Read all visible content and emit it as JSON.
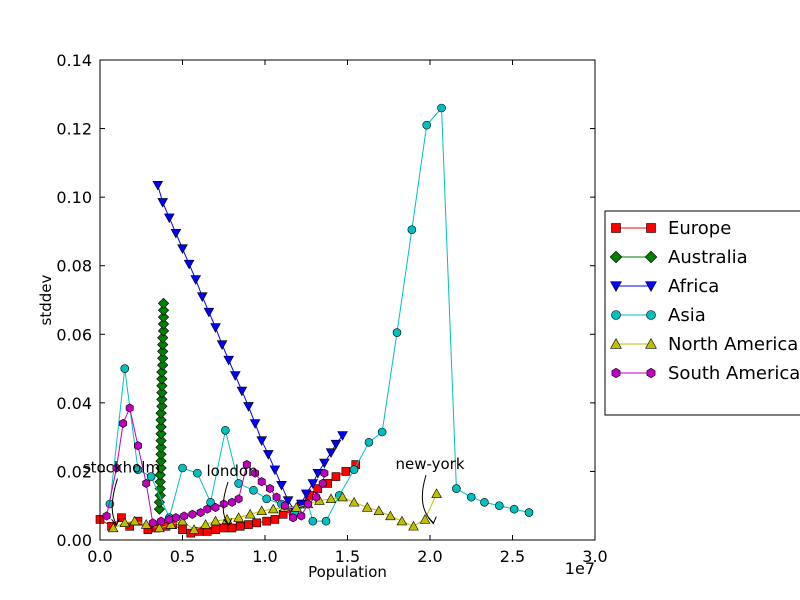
{
  "chart_data": {
    "type": "line",
    "xlabel": "Population",
    "ylabel": "stddev",
    "x_offset_label": "1e7",
    "xlim": [
      0,
      30000000
    ],
    "ylim": [
      0,
      0.14
    ],
    "x_scale": 10000000,
    "xticks": [
      0,
      5000000,
      10000000,
      15000000,
      20000000,
      25000000,
      30000000
    ],
    "xtick_labels": [
      "0.0",
      "0.5",
      "1.0",
      "1.5",
      "2.0",
      "2.5",
      "3.0"
    ],
    "yticks": [
      0,
      0.02,
      0.04,
      0.06,
      0.08,
      0.1,
      0.12,
      0.14
    ],
    "ytick_labels": [
      "0.00",
      "0.02",
      "0.04",
      "0.06",
      "0.08",
      "0.10",
      "0.12",
      "0.14"
    ],
    "grid": false,
    "legend_position": "right",
    "series": [
      {
        "name": "Europe",
        "color": "#ff0000",
        "marker": "square",
        "points": [
          [
            0,
            0.006
          ],
          [
            700000,
            0.004
          ],
          [
            1300000,
            0.0065
          ],
          [
            1800000,
            0.004
          ],
          [
            2300000,
            0.0055
          ],
          [
            2900000,
            0.003
          ],
          [
            3400000,
            0.0035
          ],
          [
            4000000,
            0.004
          ],
          [
            4400000,
            0.0045
          ],
          [
            5000000,
            0.003
          ],
          [
            5500000,
            0.002
          ],
          [
            6000000,
            0.0025
          ],
          [
            6500000,
            0.0025
          ],
          [
            7000000,
            0.003
          ],
          [
            7500000,
            0.0035
          ],
          [
            8000000,
            0.0035
          ],
          [
            8500000,
            0.004
          ],
          [
            9000000,
            0.0045
          ],
          [
            9500000,
            0.005
          ],
          [
            10100000,
            0.0055
          ],
          [
            10600000,
            0.006
          ],
          [
            11100000,
            0.0075
          ],
          [
            11700000,
            0.0085
          ],
          [
            12200000,
            0.0105
          ],
          [
            12700000,
            0.013
          ],
          [
            13200000,
            0.015
          ],
          [
            13800000,
            0.0165
          ],
          [
            14300000,
            0.0185
          ],
          [
            14900000,
            0.02
          ],
          [
            15500000,
            0.022
          ]
        ]
      },
      {
        "name": "Australia",
        "color": "#008000",
        "marker": "diamond",
        "points": [
          [
            3600000,
            0.009
          ],
          [
            3600000,
            0.011
          ],
          [
            3650000,
            0.013
          ],
          [
            3650000,
            0.015
          ],
          [
            3650000,
            0.017
          ],
          [
            3650000,
            0.019
          ],
          [
            3700000,
            0.021
          ],
          [
            3700000,
            0.023
          ],
          [
            3700000,
            0.025
          ],
          [
            3700000,
            0.027
          ],
          [
            3700000,
            0.029
          ],
          [
            3700000,
            0.031
          ],
          [
            3700000,
            0.033
          ],
          [
            3700000,
            0.035
          ],
          [
            3700000,
            0.037
          ],
          [
            3750000,
            0.039
          ],
          [
            3750000,
            0.041
          ],
          [
            3750000,
            0.043
          ],
          [
            3750000,
            0.045
          ],
          [
            3750000,
            0.047
          ],
          [
            3750000,
            0.049
          ],
          [
            3800000,
            0.051
          ],
          [
            3800000,
            0.053
          ],
          [
            3800000,
            0.055
          ],
          [
            3800000,
            0.057
          ],
          [
            3800000,
            0.059
          ],
          [
            3850000,
            0.061
          ],
          [
            3850000,
            0.063
          ],
          [
            3850000,
            0.065
          ],
          [
            3850000,
            0.067
          ],
          [
            3850000,
            0.069
          ]
        ]
      },
      {
        "name": "Africa",
        "color": "#0000ff",
        "marker": "triangle-down",
        "points": [
          [
            3500000,
            0.1035
          ],
          [
            3800000,
            0.0985
          ],
          [
            4200000,
            0.094
          ],
          [
            4600000,
            0.0895
          ],
          [
            5000000,
            0.085
          ],
          [
            5400000,
            0.0805
          ],
          [
            5800000,
            0.076
          ],
          [
            6200000,
            0.071
          ],
          [
            6600000,
            0.0665
          ],
          [
            7000000,
            0.062
          ],
          [
            7400000,
            0.057
          ],
          [
            7800000,
            0.0525
          ],
          [
            8200000,
            0.048
          ],
          [
            8600000,
            0.0435
          ],
          [
            9000000,
            0.039
          ],
          [
            9400000,
            0.034
          ],
          [
            9800000,
            0.029
          ],
          [
            10200000,
            0.025
          ],
          [
            10600000,
            0.0205
          ],
          [
            11000000,
            0.016
          ],
          [
            11400000,
            0.0115
          ],
          [
            11800000,
            0.0085
          ],
          [
            12200000,
            0.0105
          ],
          [
            12500000,
            0.0135
          ],
          [
            12900000,
            0.0165
          ],
          [
            13200000,
            0.0195
          ],
          [
            13600000,
            0.0225
          ],
          [
            14000000,
            0.0255
          ],
          [
            14300000,
            0.028
          ],
          [
            14700000,
            0.0305
          ]
        ]
      },
      {
        "name": "Asia",
        "color": "#00bfbf",
        "marker": "circle",
        "points": [
          [
            600000,
            0.0105
          ],
          [
            1500000,
            0.05
          ],
          [
            2300000,
            0.0205
          ],
          [
            3100000,
            0.0185
          ],
          [
            4200000,
            0.0065
          ],
          [
            5000000,
            0.021
          ],
          [
            5900000,
            0.0195
          ],
          [
            6700000,
            0.011
          ],
          [
            7600000,
            0.032
          ],
          [
            8400000,
            0.0165
          ],
          [
            9300000,
            0.0145
          ],
          [
            10100000,
            0.012
          ],
          [
            11000000,
            0.0105
          ],
          [
            11800000,
            0.008
          ],
          [
            12600000,
            0.0105
          ],
          [
            12900000,
            0.0055
          ],
          [
            13700000,
            0.0055
          ],
          [
            14500000,
            0.013
          ],
          [
            15400000,
            0.0205
          ],
          [
            16300000,
            0.0285
          ],
          [
            17100000,
            0.0315
          ],
          [
            18000000,
            0.0605
          ],
          [
            18900000,
            0.0905
          ],
          [
            19800000,
            0.121
          ],
          [
            20700000,
            0.126
          ],
          [
            21600000,
            0.015
          ],
          [
            22500000,
            0.0125
          ],
          [
            23300000,
            0.011
          ],
          [
            24200000,
            0.01
          ],
          [
            25100000,
            0.009
          ],
          [
            26000000,
            0.008
          ]
        ]
      },
      {
        "name": "North America",
        "color": "#bfbf00",
        "marker": "triangle-up",
        "points": [
          [
            800000,
            0.0035
          ],
          [
            1500000,
            0.005
          ],
          [
            2100000,
            0.0055
          ],
          [
            2800000,
            0.0045
          ],
          [
            3600000,
            0.0035
          ],
          [
            4300000,
            0.0045
          ],
          [
            5000000,
            0.0055
          ],
          [
            5700000,
            0.003
          ],
          [
            6400000,
            0.0045
          ],
          [
            7000000,
            0.0055
          ],
          [
            7700000,
            0.006
          ],
          [
            8400000,
            0.0065
          ],
          [
            9100000,
            0.0075
          ],
          [
            9800000,
            0.0085
          ],
          [
            10500000,
            0.009
          ],
          [
            11200000,
            0.0095
          ],
          [
            11900000,
            0.0095
          ],
          [
            12600000,
            0.0105
          ],
          [
            13300000,
            0.0115
          ],
          [
            14000000,
            0.012
          ],
          [
            14700000,
            0.0125
          ],
          [
            15400000,
            0.011
          ],
          [
            16200000,
            0.0095
          ],
          [
            16900000,
            0.0085
          ],
          [
            17600000,
            0.007
          ],
          [
            18300000,
            0.0055
          ],
          [
            19000000,
            0.004
          ],
          [
            19700000,
            0.006
          ],
          [
            20400000,
            0.0135
          ]
        ]
      },
      {
        "name": "South America",
        "color": "#bf00bf",
        "marker": "hexagon",
        "points": [
          [
            400000,
            0.007
          ],
          [
            1000000,
            0.021
          ],
          [
            1400000,
            0.034
          ],
          [
            1800000,
            0.0385
          ],
          [
            2300000,
            0.0275
          ],
          [
            2800000,
            0.0165
          ],
          [
            3200000,
            0.005
          ],
          [
            3700000,
            0.0055
          ],
          [
            4200000,
            0.006
          ],
          [
            4600000,
            0.0065
          ],
          [
            5100000,
            0.007
          ],
          [
            5600000,
            0.0075
          ],
          [
            6100000,
            0.008
          ],
          [
            6500000,
            0.009
          ],
          [
            7000000,
            0.0095
          ],
          [
            7500000,
            0.0105
          ],
          [
            8000000,
            0.011
          ],
          [
            8400000,
            0.012
          ],
          [
            8900000,
            0.022
          ],
          [
            9400000,
            0.0195
          ],
          [
            9800000,
            0.017
          ],
          [
            10300000,
            0.015
          ],
          [
            10700000,
            0.0125
          ],
          [
            11200000,
            0.01
          ],
          [
            11700000,
            0.0065
          ],
          [
            12200000,
            0.007
          ],
          [
            12600000,
            0.0105
          ],
          [
            13100000,
            0.0125
          ],
          [
            13500000,
            0.0165
          ],
          [
            13600000,
            0.0195
          ]
        ]
      }
    ],
    "annotations": [
      {
        "text": "stockholm",
        "text_xy": [
          1300000,
          0.0185
        ],
        "target_xy": [
          1000000,
          0.004
        ]
      },
      {
        "text": "london",
        "text_xy": [
          8000000,
          0.0175
        ],
        "target_xy": [
          7800000,
          0.004
        ]
      },
      {
        "text": "new-york",
        "text_xy": [
          20000000,
          0.0195
        ],
        "target_xy": [
          20200000,
          0.0045
        ]
      }
    ]
  }
}
